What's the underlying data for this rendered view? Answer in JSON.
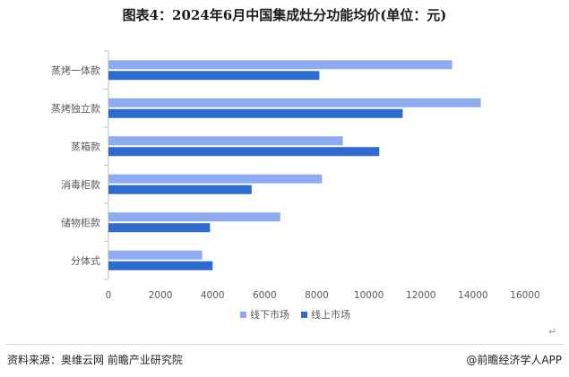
{
  "title": "图表4：2024年6月中国集成灶分功能均价(单位：元)",
  "source": "资料来源：奥维云网 前瞻产业研究院",
  "credit": "@前瞻经济学人APP",
  "return_mark": "↵",
  "colors": {
    "offline": "#8eaaf0",
    "online": "#2e6bd0",
    "axis": "#bfbfbf",
    "text": "#595959"
  },
  "chart_data": {
    "type": "bar",
    "orientation": "horizontal",
    "title": "图表4：2024年6月中国集成灶分功能均价(单位：元)",
    "categories": [
      "蒸烤一体款",
      "蒸烤独立款",
      "蒸箱款",
      "消毒柜款",
      "储物柜款",
      "分体式"
    ],
    "series": [
      {
        "name": "线下市场",
        "values": [
          13200,
          14300,
          9000,
          8200,
          6600,
          3600
        ]
      },
      {
        "name": "线上市场",
        "values": [
          8100,
          11300,
          10400,
          5500,
          3900,
          4000
        ]
      }
    ],
    "xlim": [
      0,
      16000
    ],
    "xticks": [
      "0",
      "2000",
      "4000",
      "6000",
      "8000",
      "10000",
      "12000",
      "14000",
      "16000"
    ],
    "grid": false,
    "legend_position": "bottom"
  }
}
